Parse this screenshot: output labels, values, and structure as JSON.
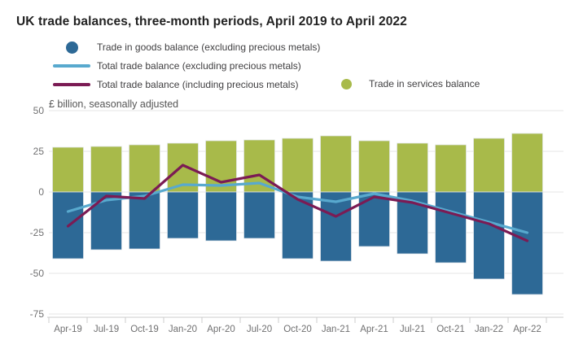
{
  "title": "UK trade balances, three-month periods, April 2019 to April 2022",
  "subtitle": "£ billion, seasonally adjusted",
  "legend": [
    {
      "label": "Trade in goods balance (excluding precious metals)",
      "marker": "dot",
      "color": "#2d6996"
    },
    {
      "label": "Total trade balance (excluding precious metals)",
      "marker": "line",
      "color": "#58a9ce"
    },
    {
      "label": "Total trade balance (including precious metals)",
      "marker": "line",
      "color": "#7b1b54"
    },
    {
      "label": "Trade in services balance",
      "marker": "dot",
      "color": "#a8ba4a"
    }
  ],
  "chart_data": {
    "type": "bar",
    "subtype": "combo: two bar series from zero baseline plus two line series",
    "title": "UK trade balances, three-month periods, April 2019 to April 2022",
    "ylabel": "£ billion, seasonally adjusted",
    "xlabel": "",
    "categories": [
      "Apr-19",
      "Jul-19",
      "Oct-19",
      "Jan-20",
      "Apr-20",
      "Jul-20",
      "Oct-20",
      "Jan-21",
      "Apr-21",
      "Jul-21",
      "Oct-21",
      "Jan-22",
      "Apr-22"
    ],
    "series": [
      {
        "name": "Trade in goods balance (excluding precious metals)",
        "type": "bar",
        "color": "#2d6996",
        "values": [
          -41,
          -35.5,
          -35,
          -28.5,
          -30,
          -28.5,
          -41,
          -42.5,
          -33.5,
          -38,
          -43.5,
          -53.5,
          -63
        ]
      },
      {
        "name": "Trade in services balance",
        "type": "bar",
        "color": "#a8ba4a",
        "values": [
          27.5,
          28,
          29,
          30,
          31.5,
          32,
          33,
          34.5,
          31.5,
          30,
          29,
          33,
          36
        ]
      },
      {
        "name": "Total trade balance (excluding precious metals)",
        "type": "line",
        "color": "#58a9ce",
        "values": [
          -12,
          -5,
          -2.5,
          4.5,
          4,
          5.5,
          -3,
          -6,
          -1,
          -5.5,
          -12,
          -18.5,
          -25
        ]
      },
      {
        "name": "Total trade balance (including precious metals)",
        "type": "line",
        "color": "#7b1b54",
        "values": [
          -21,
          -2.5,
          -4,
          16.5,
          6,
          10.5,
          -4.5,
          -15,
          -3,
          -6.5,
          -13,
          -19.5,
          -30
        ]
      }
    ],
    "yticks": [
      50,
      25,
      0,
      -25,
      -50,
      -75
    ],
    "ylim": [
      -75,
      50
    ],
    "grid": true,
    "legend_position": "top-left",
    "colors": {
      "gridline": "#e4e4e4",
      "axis_line": "#cccccc",
      "axis_text": "#707071",
      "title_text": "#222222",
      "legend_text": "#414042"
    }
  }
}
